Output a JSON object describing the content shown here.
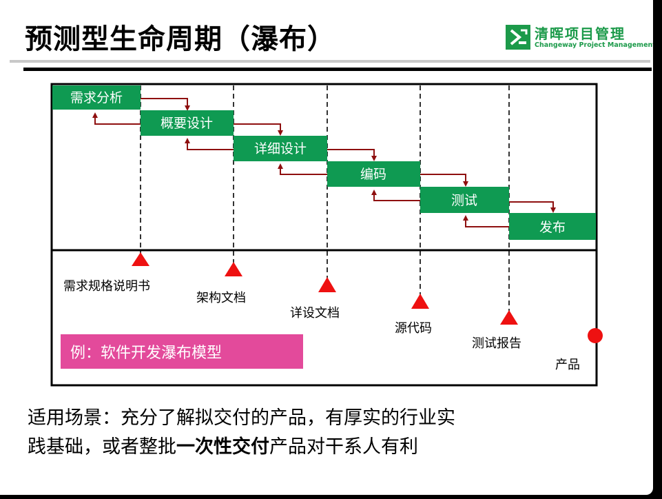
{
  "title": "预测型生命周期（瀑布）",
  "logo": {
    "name_cn": "清晖项目管理",
    "name_en": "Changeway Project Management",
    "brand_color": "#1c9a4a"
  },
  "phases": [
    "需求分析",
    "概要设计",
    "详细设计",
    "编码",
    "测试",
    "发布"
  ],
  "deliverables": [
    "需求规格说明书",
    "架构文档",
    "详设文档",
    "源代码",
    "测试报告",
    "产品"
  ],
  "example_label": "例：软件开发瀑布模型",
  "bottom_text": {
    "line1": "适用场景：充分了解拟交付的产品，有厚实的行业实",
    "line2_pre": "践基础，或者整批",
    "line2_bold": "一次性交付",
    "line2_post": "产品对干系人有利"
  },
  "colors": {
    "phase_fill": "#0f9a52",
    "arrow": "#8e0f0f",
    "milestone": "#ee1111",
    "example_bg": "#e34a9b"
  },
  "icons": {
    "milestone": "red-triangle-icon",
    "final_product": "red-circle-icon"
  }
}
